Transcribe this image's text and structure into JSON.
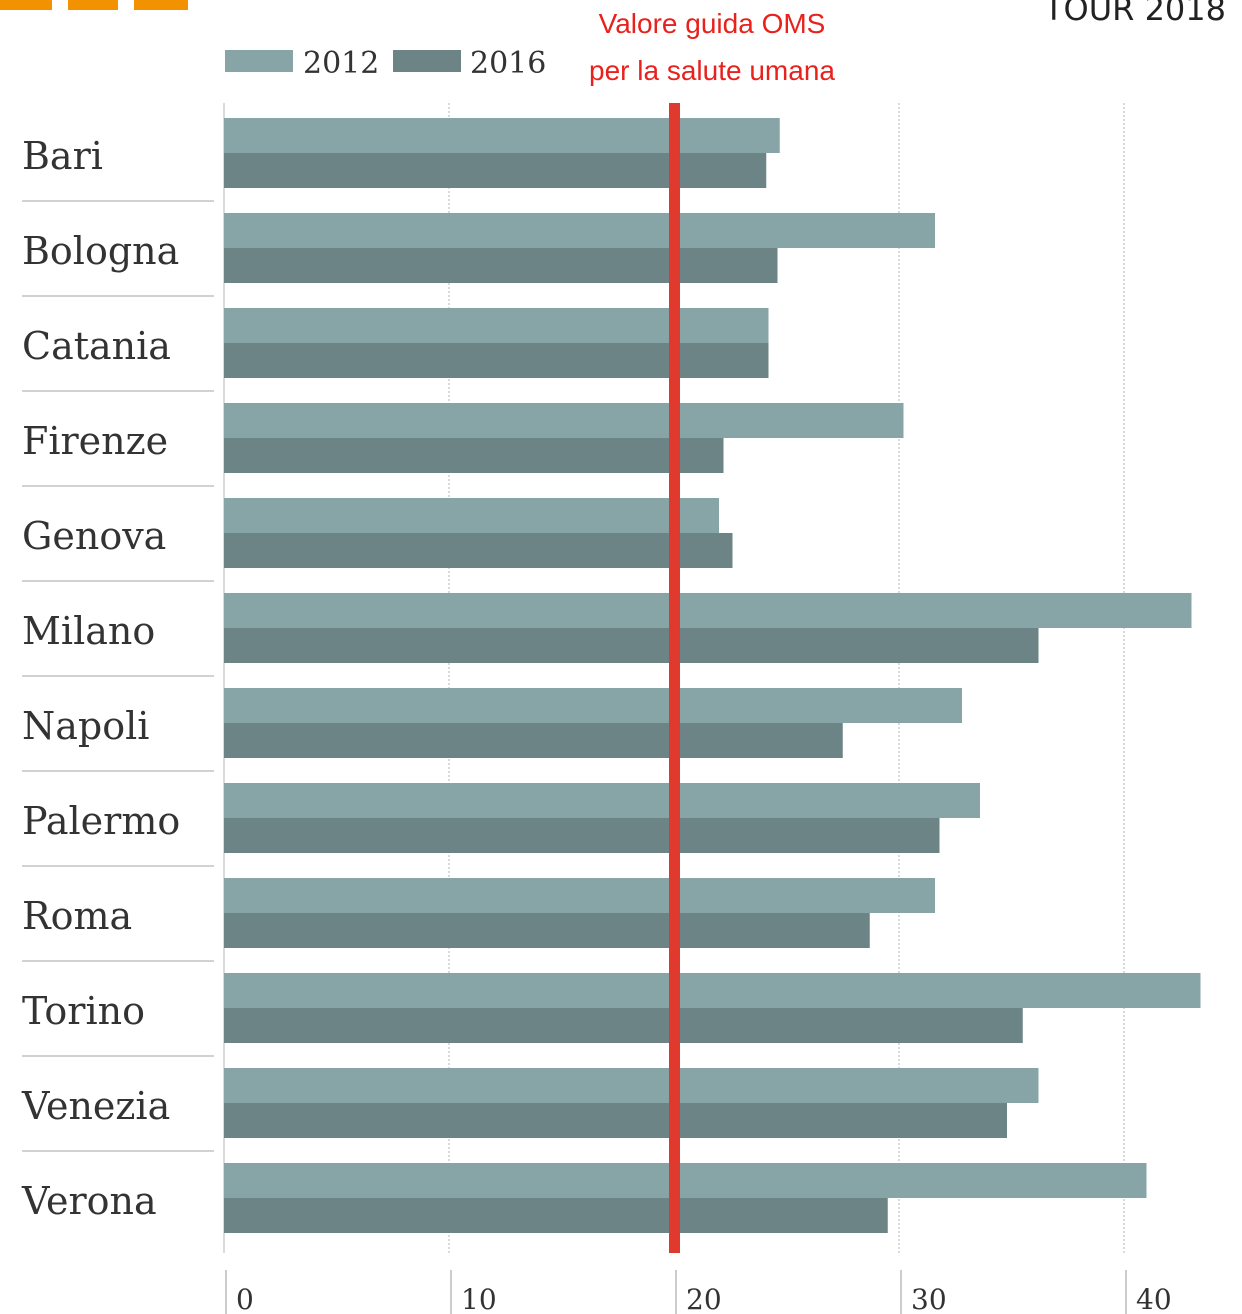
{
  "header": {
    "tour_label": "TOUR 2018",
    "logo_color": "#f39200"
  },
  "legend": [
    {
      "label": "2012",
      "color": "#87a5a6"
    },
    {
      "label": "2016",
      "color": "#6c8485"
    }
  ],
  "reference_line": {
    "value": 20,
    "line1": "Valore guida OMS",
    "line2": "per la salute umana",
    "color": "#e03a2f"
  },
  "chart_data": {
    "type": "bar",
    "orientation": "horizontal",
    "categories": [
      "Bari",
      "Bologna",
      "Catania",
      "Firenze",
      "Genova",
      "Milano",
      "Napoli",
      "Palermo",
      "Roma",
      "Torino",
      "Venezia",
      "Verona"
    ],
    "series": [
      {
        "name": "2012",
        "values": [
          24.7,
          31.6,
          24.2,
          30.2,
          22.0,
          43.0,
          32.8,
          33.6,
          31.6,
          43.4,
          36.2,
          41.0
        ]
      },
      {
        "name": "2016",
        "values": [
          24.1,
          24.6,
          24.2,
          22.2,
          22.6,
          36.2,
          27.5,
          31.8,
          28.7,
          35.5,
          34.8,
          29.5
        ]
      }
    ],
    "x_ticks": [
      "0",
      "10",
      "20",
      "30",
      "40"
    ],
    "xlim": [
      0,
      45
    ],
    "grid": true,
    "legend_position": "top-left"
  }
}
